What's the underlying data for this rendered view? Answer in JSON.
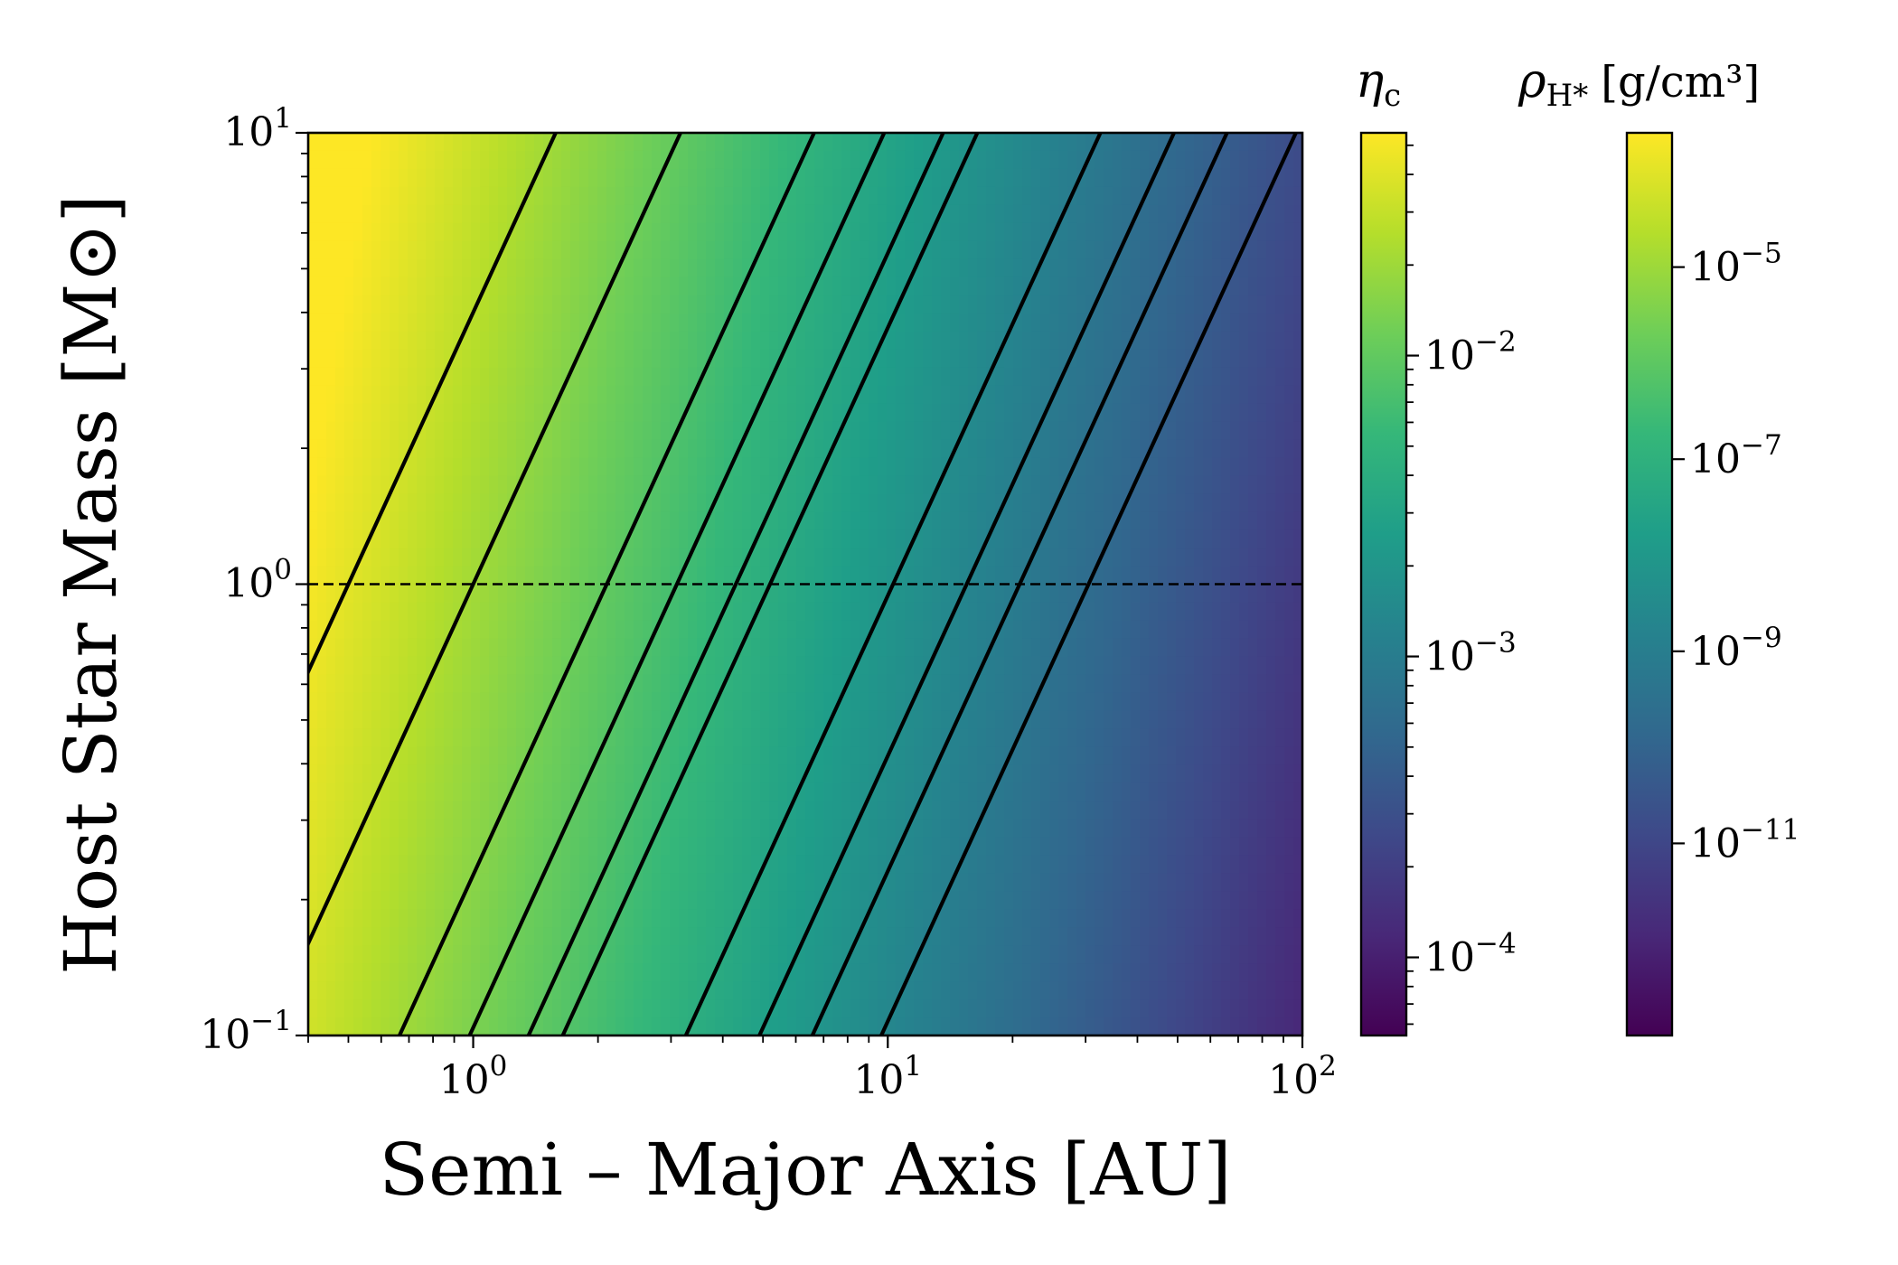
{
  "chart_data": {
    "type": "heatmap",
    "title": "",
    "xlabel": "Semi – Major Axis [AU]",
    "ylabel": "Host Star Mass [M⊙]",
    "xscale": "log",
    "yscale": "log",
    "xlim": [
      0.4,
      100
    ],
    "ylim": [
      0.1,
      10
    ],
    "x_ticks": [
      {
        "base": "10",
        "exp": "0",
        "value": 1
      },
      {
        "base": "10",
        "exp": "1",
        "value": 10
      },
      {
        "base": "10",
        "exp": "2",
        "value": 100
      }
    ],
    "y_ticks": [
      {
        "base": "10",
        "exp": "−1",
        "value": 0.1
      },
      {
        "base": "10",
        "exp": "0",
        "value": 1
      },
      {
        "base": "10",
        "exp": "1",
        "value": 10
      }
    ],
    "colormap": "viridis",
    "colormap_stops": [
      "#440154",
      "#482878",
      "#3e4989",
      "#31688e",
      "#26828e",
      "#1f9e89",
      "#35b779",
      "#6ece58",
      "#b5de2b",
      "#fde725"
    ],
    "reference_line": {
      "y": 1.0,
      "style": "dashed",
      "color": "#000000"
    },
    "contour_lines_x_at_1Msun": [
      0.5,
      1.0,
      2.1,
      3.1,
      4.3,
      5.2,
      10.3,
      15.5,
      20.8,
      30.5
    ],
    "contour_slope_dlogM_dloga": 2.0,
    "contour_color": "#000000",
    "colorbars": [
      {
        "label_symbol": "η",
        "label_sub": "c",
        "label_unit": "",
        "scale": "log",
        "range": [
          5.5e-05,
          0.055
        ],
        "ticks": [
          {
            "base": "10",
            "exp": "−2",
            "value": 0.01
          },
          {
            "base": "10",
            "exp": "−3",
            "value": 0.001
          },
          {
            "base": "10",
            "exp": "−4",
            "value": 0.0001
          }
        ]
      },
      {
        "label_symbol": "ρ",
        "label_sub": "H*",
        "label_unit": "[g/cm³]",
        "scale": "log",
        "range": [
          1e-13,
          0.00025
        ],
        "ticks": [
          {
            "base": "10",
            "exp": "−5",
            "value": 1e-05
          },
          {
            "base": "10",
            "exp": "−7",
            "value": 1e-07
          },
          {
            "base": "10",
            "exp": "−9",
            "value": 1e-09
          },
          {
            "base": "10",
            "exp": "−11",
            "value": 1e-11
          }
        ]
      }
    ]
  }
}
